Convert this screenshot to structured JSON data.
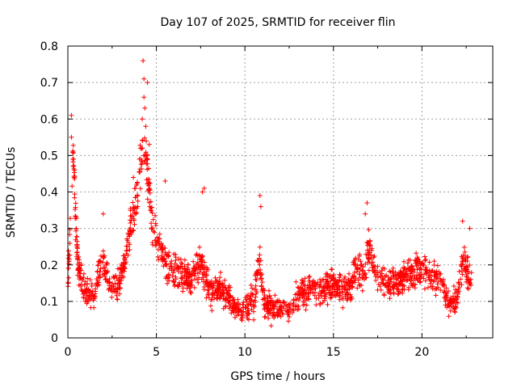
{
  "chart_data": {
    "type": "scatter",
    "title": "Day 107 of 2025, SRMTID for receiver flin",
    "xlabel": "GPS time / hours",
    "ylabel": "SRMTID / TECUs",
    "xlim": [
      0,
      24
    ],
    "ylim": [
      0,
      0.8
    ],
    "x_ticks": [
      0,
      5,
      10,
      15,
      20
    ],
    "y_ticks": [
      0,
      0.1,
      0.2,
      0.3,
      0.4,
      0.5,
      0.6,
      0.7,
      0.8
    ],
    "x_tick_labels": [
      "0",
      "5",
      "10",
      "15",
      "20"
    ],
    "y_tick_labels": [
      "0",
      "0.1",
      "0.2",
      "0.3",
      "0.4",
      "0.5",
      "0.6",
      "0.7",
      "0.8"
    ],
    "grid": true,
    "marker": "+",
    "color": "#ff0000",
    "series": [
      {
        "name": "SRMTID",
        "profile": [
          {
            "x": 0.0,
            "y": 0.16
          },
          {
            "x": 0.15,
            "y": 0.3
          },
          {
            "x": 0.3,
            "y": 0.5
          },
          {
            "x": 0.45,
            "y": 0.32
          },
          {
            "x": 0.6,
            "y": 0.18
          },
          {
            "x": 1.0,
            "y": 0.12
          },
          {
            "x": 1.5,
            "y": 0.12
          },
          {
            "x": 1.9,
            "y": 0.22
          },
          {
            "x": 2.3,
            "y": 0.15
          },
          {
            "x": 2.8,
            "y": 0.14
          },
          {
            "x": 3.2,
            "y": 0.2
          },
          {
            "x": 3.6,
            "y": 0.32
          },
          {
            "x": 4.0,
            "y": 0.42
          },
          {
            "x": 4.3,
            "y": 0.55
          },
          {
            "x": 4.5,
            "y": 0.45
          },
          {
            "x": 4.8,
            "y": 0.3
          },
          {
            "x": 5.2,
            "y": 0.25
          },
          {
            "x": 5.6,
            "y": 0.2
          },
          {
            "x": 6.0,
            "y": 0.18
          },
          {
            "x": 6.5,
            "y": 0.17
          },
          {
            "x": 7.0,
            "y": 0.16
          },
          {
            "x": 7.5,
            "y": 0.22
          },
          {
            "x": 8.0,
            "y": 0.13
          },
          {
            "x": 8.5,
            "y": 0.14
          },
          {
            "x": 9.0,
            "y": 0.12
          },
          {
            "x": 9.5,
            "y": 0.08
          },
          {
            "x": 10.0,
            "y": 0.08
          },
          {
            "x": 10.5,
            "y": 0.1
          },
          {
            "x": 10.8,
            "y": 0.22
          },
          {
            "x": 11.1,
            "y": 0.1
          },
          {
            "x": 11.5,
            "y": 0.08
          },
          {
            "x": 12.0,
            "y": 0.08
          },
          {
            "x": 12.5,
            "y": 0.07
          },
          {
            "x": 13.0,
            "y": 0.12
          },
          {
            "x": 13.5,
            "y": 0.13
          },
          {
            "x": 14.0,
            "y": 0.14
          },
          {
            "x": 14.5,
            "y": 0.13
          },
          {
            "x": 15.0,
            "y": 0.15
          },
          {
            "x": 15.5,
            "y": 0.13
          },
          {
            "x": 16.0,
            "y": 0.14
          },
          {
            "x": 16.3,
            "y": 0.2
          },
          {
            "x": 16.6,
            "y": 0.17
          },
          {
            "x": 17.0,
            "y": 0.24
          },
          {
            "x": 17.4,
            "y": 0.17
          },
          {
            "x": 18.0,
            "y": 0.15
          },
          {
            "x": 18.5,
            "y": 0.14
          },
          {
            "x": 19.0,
            "y": 0.17
          },
          {
            "x": 19.5,
            "y": 0.18
          },
          {
            "x": 20.0,
            "y": 0.19
          },
          {
            "x": 20.5,
            "y": 0.17
          },
          {
            "x": 21.0,
            "y": 0.16
          },
          {
            "x": 21.5,
            "y": 0.1
          },
          {
            "x": 22.0,
            "y": 0.1
          },
          {
            "x": 22.3,
            "y": 0.22
          },
          {
            "x": 22.8,
            "y": 0.15
          }
        ],
        "spikes": [
          {
            "x": 0.2,
            "y": 0.61
          },
          {
            "x": 0.2,
            "y": 0.55
          },
          {
            "x": 0.3,
            "y": 0.47
          },
          {
            "x": 0.35,
            "y": 0.44
          },
          {
            "x": 4.25,
            "y": 0.76
          },
          {
            "x": 4.3,
            "y": 0.71
          },
          {
            "x": 4.5,
            "y": 0.7
          },
          {
            "x": 4.3,
            "y": 0.66
          },
          {
            "x": 4.35,
            "y": 0.63
          },
          {
            "x": 4.2,
            "y": 0.6
          },
          {
            "x": 4.4,
            "y": 0.58
          },
          {
            "x": 4.6,
            "y": 0.53
          },
          {
            "x": 4.1,
            "y": 0.52
          },
          {
            "x": 4.5,
            "y": 0.49
          },
          {
            "x": 5.5,
            "y": 0.43
          },
          {
            "x": 7.7,
            "y": 0.41
          },
          {
            "x": 7.6,
            "y": 0.4
          },
          {
            "x": 10.85,
            "y": 0.39
          },
          {
            "x": 10.9,
            "y": 0.36
          },
          {
            "x": 16.9,
            "y": 0.37
          },
          {
            "x": 16.8,
            "y": 0.34
          },
          {
            "x": 22.3,
            "y": 0.32
          },
          {
            "x": 22.7,
            "y": 0.3
          },
          {
            "x": 2.0,
            "y": 0.34
          },
          {
            "x": 3.7,
            "y": 0.44
          },
          {
            "x": 3.8,
            "y": 0.41
          }
        ],
        "spread": 0.05,
        "count": 1800,
        "seed": 107
      }
    ]
  }
}
